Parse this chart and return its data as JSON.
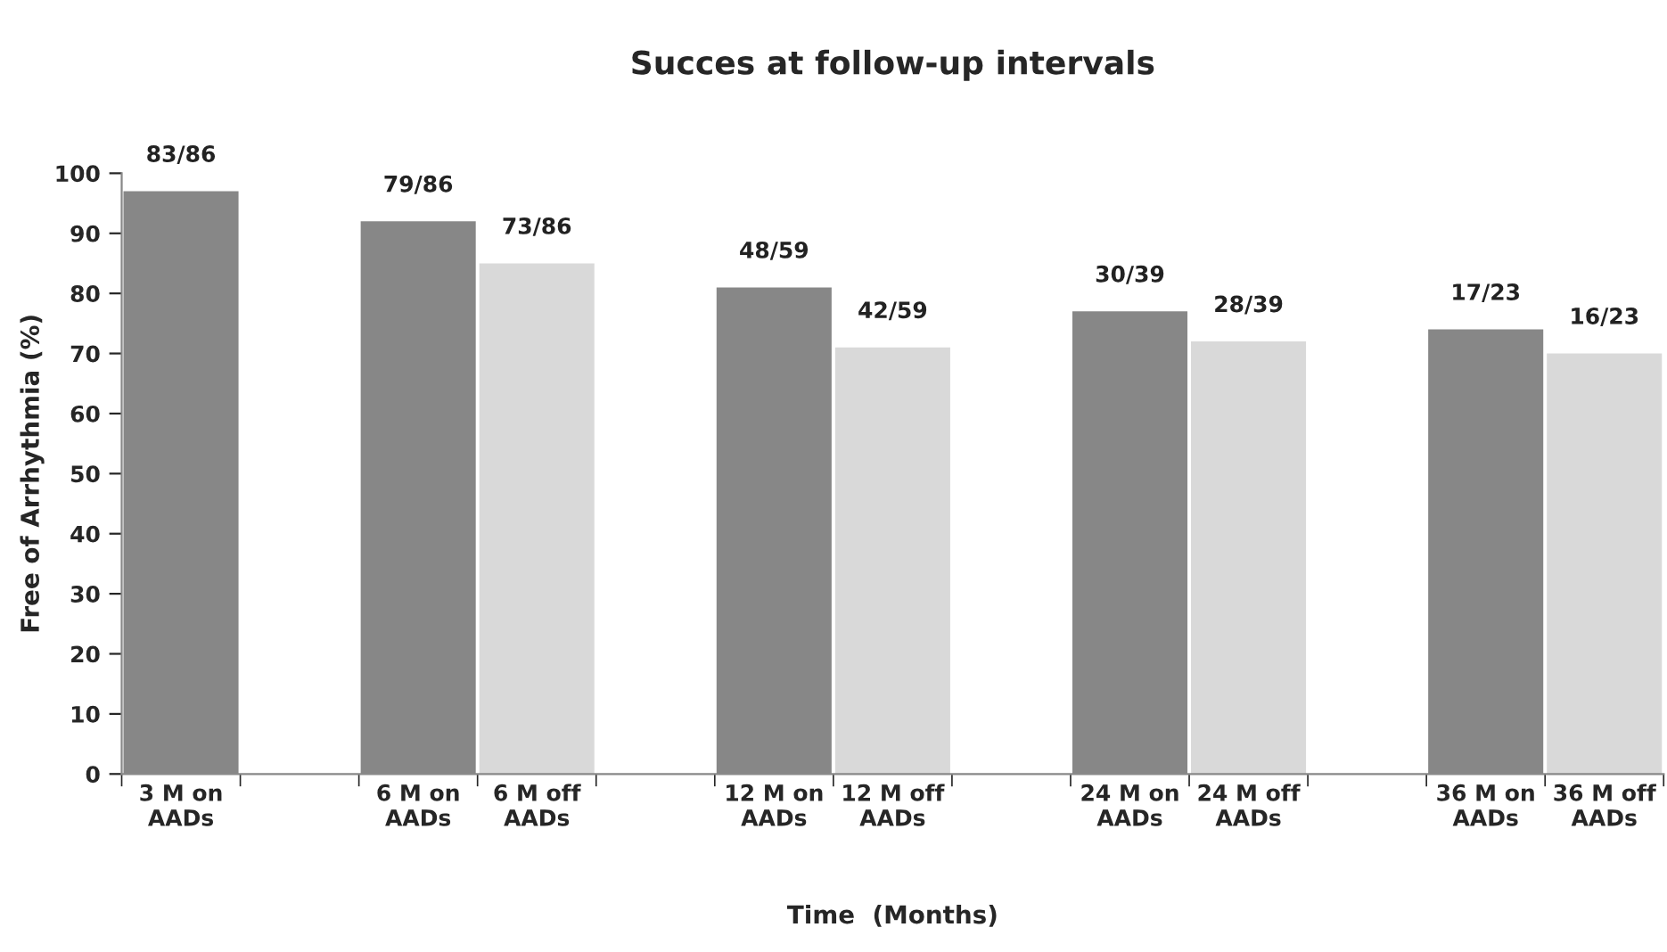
{
  "chart_data": {
    "type": "bar",
    "title": "Succes at follow-up intervals",
    "xlabel": "Time  (Months)",
    "ylabel": "Free of Arrhythmia (%)",
    "categories": [
      "3 M on\nAADs",
      null,
      "6 M on\nAADs",
      "6 M off\nAADs",
      null,
      "12 M on\nAADs",
      "12 M off\nAADs",
      null,
      "24 M on\nAADs",
      "24 M off\nAADs",
      null,
      "36 M on\nAADs",
      "36 M off\nAADs"
    ],
    "values": [
      97,
      null,
      92,
      85,
      null,
      81,
      71,
      null,
      77,
      72,
      null,
      74,
      70
    ],
    "colors": [
      "#878787",
      null,
      "#878787",
      "#d9d9d9",
      null,
      "#878787",
      "#d9d9d9",
      null,
      "#878787",
      "#d9d9d9",
      null,
      "#878787",
      "#d9d9d9"
    ],
    "value_labels": [
      "83/86",
      null,
      "79/86",
      "73/86",
      null,
      "48/59",
      "42/59",
      null,
      "30/39",
      "28/39",
      null,
      "17/23",
      "16/23"
    ],
    "ylim": [
      0,
      100
    ],
    "yticks": [
      0,
      10,
      20,
      30,
      40,
      50,
      60,
      70,
      80,
      90,
      100
    ],
    "grid": false,
    "legend": false
  }
}
